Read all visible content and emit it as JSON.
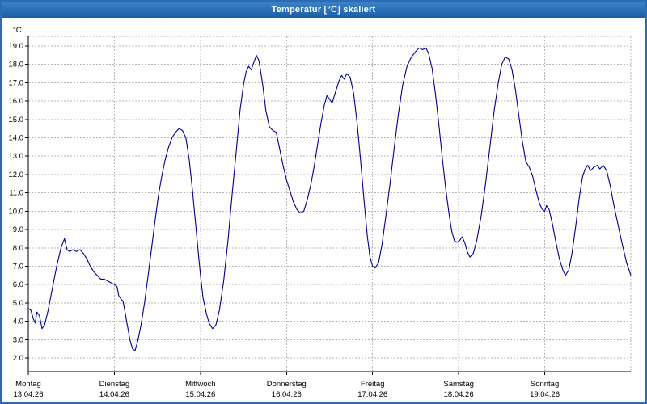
{
  "window": {
    "title": "Temperatur [°C] skaliert"
  },
  "colors": {
    "titlebar_blue": "#1b5ea7",
    "window_border_blue": "#2f6bb5",
    "line_navy": "#00008b",
    "grid_gray": "#b4b4b4"
  },
  "chart_data": {
    "type": "line",
    "title": "Temperatur [°C] skaliert",
    "xlabel": "",
    "ylabel": "°C",
    "ylim": [
      2.0,
      19.0
    ],
    "x_range_days": [
      0,
      7
    ],
    "grid": "dashed",
    "legend_position": "none",
    "y_ticks": [
      "2.0",
      "3.0",
      "4.0",
      "5.0",
      "6.0",
      "7.0",
      "8.0",
      "9.0",
      "10.0",
      "11.0",
      "12.0",
      "13.0",
      "14.0",
      "15.0",
      "16.0",
      "17.0",
      "18.0",
      "19.0"
    ],
    "x_ticks": [
      {
        "day": "Montag",
        "date": "13.04.26"
      },
      {
        "day": "Dienstag",
        "date": "14.04.26"
      },
      {
        "day": "Mittwoch",
        "date": "15.04.26"
      },
      {
        "day": "Donnerstag",
        "date": "16.04.26"
      },
      {
        "day": "Freitag",
        "date": "17.04.26"
      },
      {
        "day": "Samstag",
        "date": "18.04.26"
      },
      {
        "day": "Sonntag",
        "date": "19.04.26"
      }
    ],
    "series": [
      {
        "name": "Temperatur",
        "color": "#00008b",
        "points": [
          [
            0.0,
            4.7
          ],
          [
            0.03,
            4.6
          ],
          [
            0.06,
            4.1
          ],
          [
            0.08,
            3.9
          ],
          [
            0.1,
            4.5
          ],
          [
            0.13,
            4.3
          ],
          [
            0.16,
            3.6
          ],
          [
            0.19,
            3.8
          ],
          [
            0.23,
            4.6
          ],
          [
            0.28,
            5.8
          ],
          [
            0.33,
            7.0
          ],
          [
            0.38,
            8.0
          ],
          [
            0.42,
            8.5
          ],
          [
            0.45,
            7.9
          ],
          [
            0.48,
            7.8
          ],
          [
            0.52,
            7.9
          ],
          [
            0.56,
            7.8
          ],
          [
            0.6,
            7.9
          ],
          [
            0.64,
            7.7
          ],
          [
            0.68,
            7.4
          ],
          [
            0.72,
            7.0
          ],
          [
            0.76,
            6.7
          ],
          [
            0.8,
            6.5
          ],
          [
            0.84,
            6.3
          ],
          [
            0.88,
            6.3
          ],
          [
            0.92,
            6.2
          ],
          [
            0.96,
            6.1
          ],
          [
            1.0,
            6.0
          ],
          [
            1.03,
            5.9
          ],
          [
            1.05,
            5.4
          ],
          [
            1.08,
            5.2
          ],
          [
            1.1,
            5.1
          ],
          [
            1.12,
            4.6
          ],
          [
            1.15,
            3.8
          ],
          [
            1.18,
            3.0
          ],
          [
            1.21,
            2.5
          ],
          [
            1.24,
            2.4
          ],
          [
            1.27,
            2.9
          ],
          [
            1.31,
            3.8
          ],
          [
            1.35,
            5.0
          ],
          [
            1.39,
            6.4
          ],
          [
            1.43,
            7.9
          ],
          [
            1.47,
            9.4
          ],
          [
            1.51,
            10.8
          ],
          [
            1.55,
            11.9
          ],
          [
            1.59,
            12.8
          ],
          [
            1.63,
            13.5
          ],
          [
            1.67,
            14.0
          ],
          [
            1.71,
            14.3
          ],
          [
            1.75,
            14.5
          ],
          [
            1.79,
            14.4
          ],
          [
            1.83,
            14.0
          ],
          [
            1.87,
            12.8
          ],
          [
            1.91,
            11.0
          ],
          [
            1.95,
            9.0
          ],
          [
            1.98,
            7.5
          ],
          [
            2.0,
            6.5
          ],
          [
            2.03,
            5.3
          ],
          [
            2.07,
            4.4
          ],
          [
            2.1,
            3.9
          ],
          [
            2.14,
            3.6
          ],
          [
            2.18,
            3.8
          ],
          [
            2.22,
            4.6
          ],
          [
            2.27,
            6.2
          ],
          [
            2.32,
            8.4
          ],
          [
            2.37,
            11.0
          ],
          [
            2.42,
            13.5
          ],
          [
            2.46,
            15.5
          ],
          [
            2.5,
            16.9
          ],
          [
            2.53,
            17.6
          ],
          [
            2.56,
            17.9
          ],
          [
            2.59,
            17.7
          ],
          [
            2.62,
            18.1
          ],
          [
            2.65,
            18.5
          ],
          [
            2.68,
            18.2
          ],
          [
            2.72,
            17.0
          ],
          [
            2.76,
            15.5
          ],
          [
            2.8,
            14.6
          ],
          [
            2.84,
            14.4
          ],
          [
            2.88,
            14.3
          ],
          [
            2.92,
            13.4
          ],
          [
            2.96,
            12.5
          ],
          [
            3.0,
            11.7
          ],
          [
            3.04,
            11.1
          ],
          [
            3.08,
            10.5
          ],
          [
            3.12,
            10.1
          ],
          [
            3.16,
            9.9
          ],
          [
            3.2,
            10.0
          ],
          [
            3.24,
            10.6
          ],
          [
            3.28,
            11.4
          ],
          [
            3.32,
            12.4
          ],
          [
            3.36,
            13.6
          ],
          [
            3.4,
            14.8
          ],
          [
            3.44,
            15.8
          ],
          [
            3.47,
            16.3
          ],
          [
            3.5,
            16.1
          ],
          [
            3.53,
            15.9
          ],
          [
            3.57,
            16.5
          ],
          [
            3.61,
            17.1
          ],
          [
            3.64,
            17.4
          ],
          [
            3.67,
            17.2
          ],
          [
            3.7,
            17.5
          ],
          [
            3.74,
            17.3
          ],
          [
            3.78,
            16.4
          ],
          [
            3.82,
            14.8
          ],
          [
            3.86,
            12.8
          ],
          [
            3.9,
            10.6
          ],
          [
            3.94,
            8.6
          ],
          [
            3.97,
            7.5
          ],
          [
            4.0,
            7.0
          ],
          [
            4.03,
            6.9
          ],
          [
            4.07,
            7.2
          ],
          [
            4.11,
            8.2
          ],
          [
            4.15,
            9.6
          ],
          [
            4.2,
            11.4
          ],
          [
            4.25,
            13.4
          ],
          [
            4.3,
            15.3
          ],
          [
            4.35,
            16.9
          ],
          [
            4.4,
            17.9
          ],
          [
            4.45,
            18.4
          ],
          [
            4.5,
            18.7
          ],
          [
            4.54,
            18.9
          ],
          [
            4.58,
            18.8
          ],
          [
            4.62,
            18.9
          ],
          [
            4.65,
            18.6
          ],
          [
            4.69,
            17.8
          ],
          [
            4.73,
            16.4
          ],
          [
            4.77,
            14.7
          ],
          [
            4.81,
            12.9
          ],
          [
            4.85,
            11.2
          ],
          [
            4.89,
            9.8
          ],
          [
            4.92,
            8.9
          ],
          [
            4.95,
            8.4
          ],
          [
            4.98,
            8.3
          ],
          [
            5.01,
            8.4
          ],
          [
            5.04,
            8.6
          ],
          [
            5.07,
            8.3
          ],
          [
            5.1,
            7.8
          ],
          [
            5.13,
            7.5
          ],
          [
            5.17,
            7.7
          ],
          [
            5.21,
            8.4
          ],
          [
            5.26,
            9.7
          ],
          [
            5.31,
            11.4
          ],
          [
            5.36,
            13.4
          ],
          [
            5.41,
            15.4
          ],
          [
            5.46,
            17.0
          ],
          [
            5.5,
            18.0
          ],
          [
            5.54,
            18.4
          ],
          [
            5.58,
            18.3
          ],
          [
            5.62,
            17.7
          ],
          [
            5.66,
            16.6
          ],
          [
            5.7,
            15.2
          ],
          [
            5.74,
            13.8
          ],
          [
            5.78,
            12.7
          ],
          [
            5.82,
            12.4
          ],
          [
            5.86,
            11.9
          ],
          [
            5.9,
            11.1
          ],
          [
            5.94,
            10.4
          ],
          [
            5.97,
            10.1
          ],
          [
            6.0,
            10.0
          ],
          [
            6.02,
            10.3
          ],
          [
            6.05,
            10.1
          ],
          [
            6.09,
            9.3
          ],
          [
            6.13,
            8.3
          ],
          [
            6.17,
            7.4
          ],
          [
            6.21,
            6.8
          ],
          [
            6.24,
            6.5
          ],
          [
            6.28,
            6.8
          ],
          [
            6.32,
            7.8
          ],
          [
            6.36,
            9.2
          ],
          [
            6.4,
            10.7
          ],
          [
            6.44,
            11.9
          ],
          [
            6.47,
            12.3
          ],
          [
            6.5,
            12.5
          ],
          [
            6.53,
            12.2
          ],
          [
            6.57,
            12.4
          ],
          [
            6.61,
            12.5
          ],
          [
            6.64,
            12.3
          ],
          [
            6.68,
            12.5
          ],
          [
            6.72,
            12.2
          ],
          [
            6.76,
            11.4
          ],
          [
            6.8,
            10.4
          ],
          [
            6.85,
            9.3
          ],
          [
            6.9,
            8.2
          ],
          [
            6.95,
            7.2
          ],
          [
            7.0,
            6.5
          ]
        ]
      }
    ]
  }
}
